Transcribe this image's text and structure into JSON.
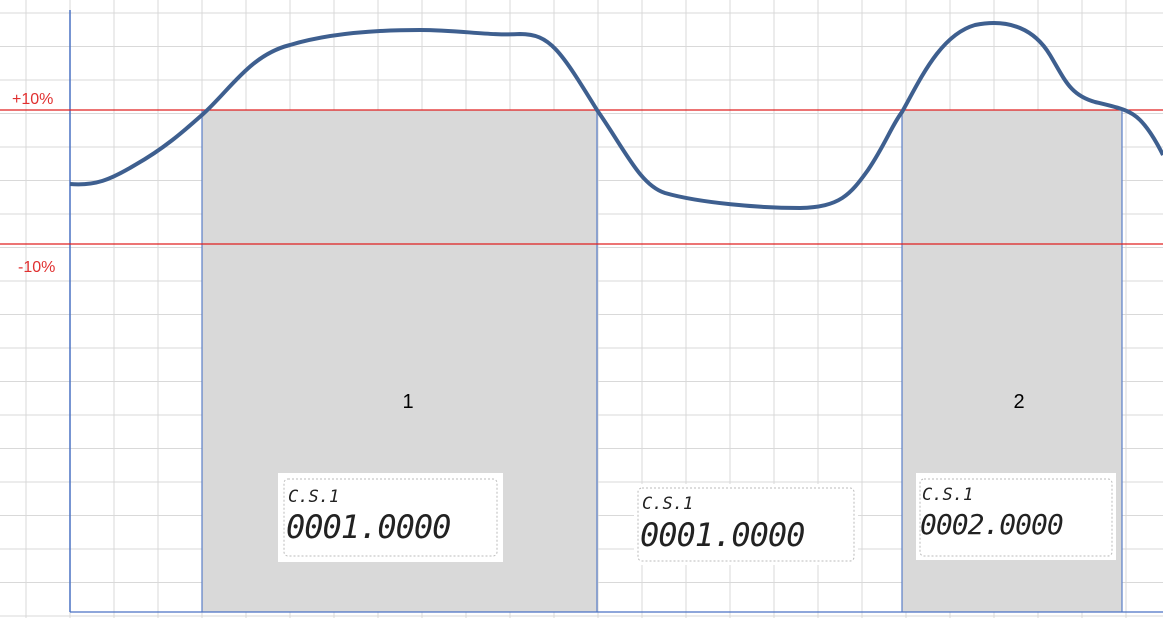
{
  "thresholds": [
    {
      "label": "+10%"
    },
    {
      "label": "-10%"
    }
  ],
  "regions": [
    {
      "label": "1"
    },
    {
      "label": "2"
    }
  ],
  "displays": [
    {
      "header": "C.S.1",
      "reading": "0001.0000"
    },
    {
      "header": "C.S.1",
      "reading": "0001.0000"
    },
    {
      "header": "C.S.1",
      "reading": "0002.0000"
    }
  ]
}
